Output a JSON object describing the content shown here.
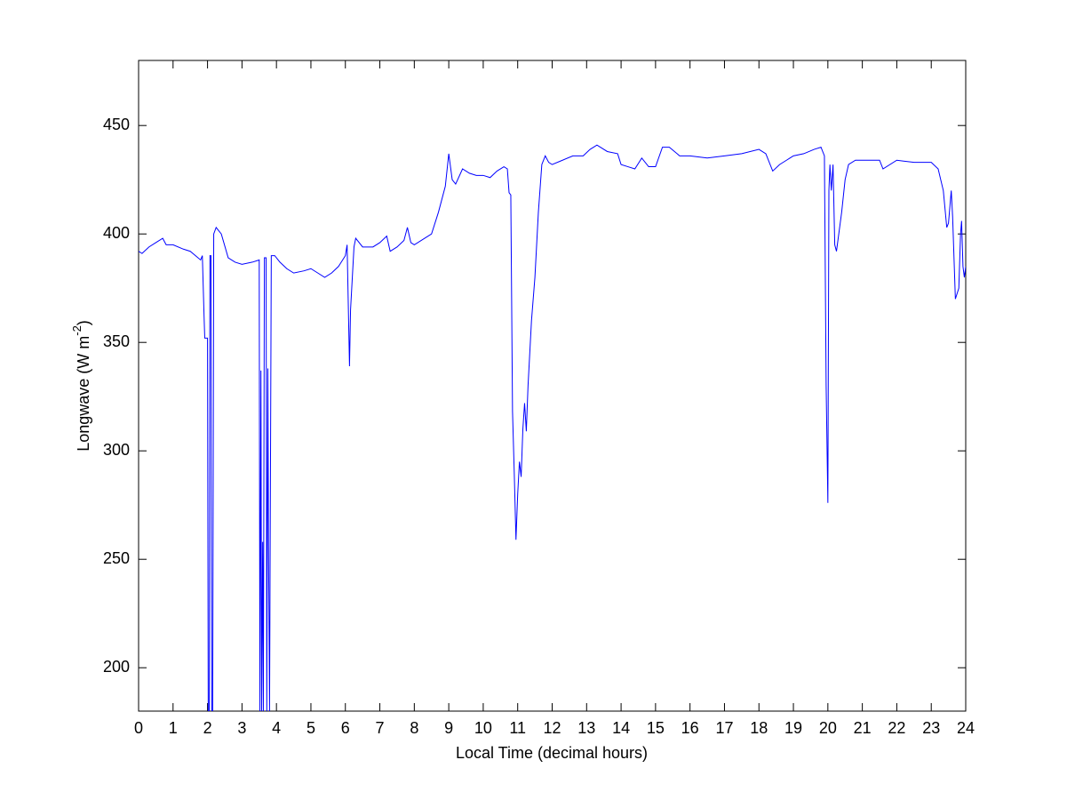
{
  "chart_data": {
    "type": "line",
    "xlabel": "Local Time (decimal hours)",
    "ylabel": {
      "text": "Longwave (W m",
      "superscript": "-2",
      "suffix": ")"
    },
    "color": "#0000ff",
    "xlim": [
      0,
      24
    ],
    "xticks": [
      0,
      1,
      2,
      3,
      4,
      5,
      6,
      7,
      8,
      9,
      10,
      11,
      12,
      13,
      14,
      15,
      16,
      17,
      18,
      19,
      20,
      21,
      22,
      23,
      24
    ],
    "ylim": [
      180,
      480
    ],
    "yticks": [
      200,
      250,
      300,
      350,
      400,
      450
    ],
    "x": [
      0,
      0.1,
      0.3,
      0.5,
      0.7,
      0.8,
      1.0,
      1.3,
      1.5,
      1.8,
      1.85,
      1.9,
      1.92,
      2.0,
      2.02,
      2.05,
      2.07,
      2.1,
      2.12,
      2.15,
      2.18,
      2.25,
      2.4,
      2.6,
      2.8,
      3.0,
      3.3,
      3.5,
      3.52,
      3.55,
      3.57,
      3.6,
      3.62,
      3.65,
      3.7,
      3.72,
      3.75,
      3.77,
      3.8,
      3.85,
      3.95,
      4.1,
      4.3,
      4.5,
      4.8,
      5.0,
      5.2,
      5.4,
      5.6,
      5.8,
      6.0,
      6.05,
      6.1,
      6.12,
      6.15,
      6.25,
      6.3,
      6.5,
      6.8,
      7.0,
      7.2,
      7.3,
      7.5,
      7.7,
      7.8,
      7.9,
      8.0,
      8.3,
      8.5,
      8.7,
      8.9,
      9.0,
      9.1,
      9.2,
      9.4,
      9.6,
      9.8,
      10.0,
      10.2,
      10.4,
      10.6,
      10.7,
      10.75,
      10.8,
      10.85,
      10.9,
      10.95,
      11.0,
      11.05,
      11.1,
      11.15,
      11.2,
      11.25,
      11.3,
      11.4,
      11.5,
      11.6,
      11.7,
      11.8,
      11.9,
      12.0,
      12.3,
      12.6,
      12.9,
      13.1,
      13.3,
      13.6,
      13.9,
      14.0,
      14.2,
      14.4,
      14.6,
      14.8,
      15.0,
      15.2,
      15.4,
      15.7,
      16.0,
      16.5,
      17.0,
      17.5,
      18.0,
      18.2,
      18.4,
      18.6,
      18.8,
      19.0,
      19.3,
      19.6,
      19.8,
      19.9,
      19.95,
      20.0,
      20.03,
      20.06,
      20.1,
      20.15,
      20.2,
      20.25,
      20.4,
      20.5,
      20.6,
      20.8,
      21.0,
      21.5,
      21.6,
      22.0,
      22.5,
      23.0,
      23.2,
      23.35,
      23.45,
      23.5,
      23.58,
      23.62,
      23.7,
      23.8,
      23.85,
      23.88,
      23.92,
      23.96,
      24.0
    ],
    "values": [
      392,
      391,
      394,
      396,
      398,
      395,
      395,
      393,
      392,
      388,
      390,
      362,
      352,
      352,
      180,
      180,
      390,
      390,
      180,
      180,
      400,
      403,
      400,
      389,
      387,
      386,
      387,
      388,
      180,
      337,
      180,
      258,
      180,
      389,
      389,
      180,
      338,
      258,
      180,
      390,
      390,
      387,
      384,
      382,
      383,
      384,
      382,
      380,
      382,
      385,
      390,
      395,
      355,
      339,
      365,
      394,
      398,
      394,
      394,
      396,
      399,
      392,
      394,
      397,
      403,
      396,
      395,
      398,
      400,
      410,
      422,
      437,
      425,
      423,
      430,
      428,
      427,
      427,
      426,
      429,
      431,
      430,
      419,
      418,
      318,
      290,
      259,
      280,
      295,
      288,
      310,
      322,
      309,
      330,
      360,
      380,
      410,
      432,
      436,
      433,
      432,
      434,
      436,
      436,
      439,
      441,
      438,
      437,
      432,
      431,
      430,
      435,
      431,
      431,
      440,
      440,
      436,
      436,
      435,
      436,
      437,
      439,
      437,
      429,
      432,
      434,
      436,
      437,
      439,
      440,
      436,
      330,
      276,
      420,
      432,
      420,
      432,
      395,
      392,
      410,
      425,
      432,
      434,
      434,
      434,
      430,
      434,
      433,
      433,
      430,
      420,
      403,
      405,
      420,
      408,
      370,
      375,
      400,
      406,
      385,
      380,
      385
    ]
  }
}
